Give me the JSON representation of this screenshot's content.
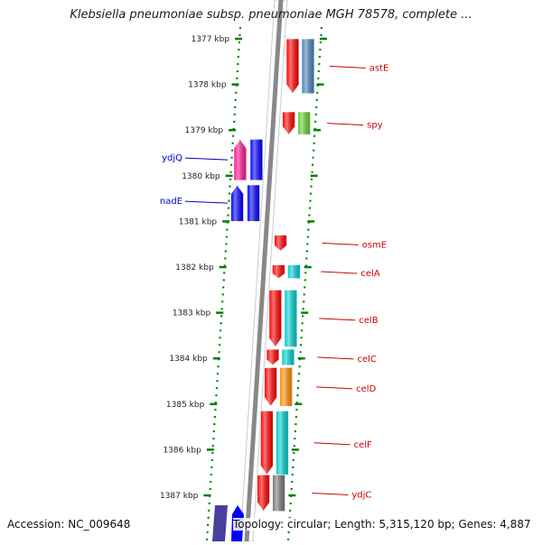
{
  "title": "Klebsiella pneumoniae subsp. pneumoniae MGH 78578, complete ...",
  "footer": {
    "accession": "Accession: NC_009648",
    "stats": "Topology: circular; Length: 5,315,120 bp; Genes: 4,887"
  },
  "colors": {
    "forward_label": "#cc0000",
    "reverse_label": "#0000cc",
    "ruler_ticks": "#008000",
    "backbone": "#888888"
  },
  "ruler": [
    {
      "label": "1377 kbp",
      "kbp": 1377
    },
    {
      "label": "1378 kbp",
      "kbp": 1378
    },
    {
      "label": "1379 kbp",
      "kbp": 1379
    },
    {
      "label": "1380 kbp",
      "kbp": 1380
    },
    {
      "label": "1381 kbp",
      "kbp": 1381
    },
    {
      "label": "1382 kbp",
      "kbp": 1382
    },
    {
      "label": "1383 kbp",
      "kbp": 1383
    },
    {
      "label": "1384 kbp",
      "kbp": 1384
    },
    {
      "label": "1385 kbp",
      "kbp": 1385
    },
    {
      "label": "1386 kbp",
      "kbp": 1386
    },
    {
      "label": "1387 kbp",
      "kbp": 1387
    }
  ],
  "genes": [
    {
      "name": "astE",
      "strand": "forward",
      "start_kbp": 1377.0,
      "end_kbp": 1378.2,
      "color": "#ff0000",
      "feature_color": "#4682b4"
    },
    {
      "name": "spy",
      "strand": "forward",
      "start_kbp": 1378.6,
      "end_kbp": 1379.1,
      "color": "#ff0000",
      "feature_color": "#66cc33"
    },
    {
      "name": "ydjQ",
      "strand": "reverse",
      "start_kbp": 1379.2,
      "end_kbp": 1380.1,
      "color": "#ff1493",
      "feature_color": "#0000ff"
    },
    {
      "name": "nadE",
      "strand": "reverse",
      "start_kbp": 1380.2,
      "end_kbp": 1381.0,
      "color": "#0000ff",
      "feature_color": "#0000ff"
    },
    {
      "name": "osmE",
      "strand": "forward",
      "start_kbp": 1381.3,
      "end_kbp": 1381.65,
      "color": "#ff0000",
      "feature_color": ""
    },
    {
      "name": "celA",
      "strand": "forward",
      "start_kbp": 1381.95,
      "end_kbp": 1382.25,
      "color": "#ff0000",
      "feature_color": "#00cccc"
    },
    {
      "name": "celB",
      "strand": "forward",
      "start_kbp": 1382.5,
      "end_kbp": 1383.75,
      "color": "#ff0000",
      "feature_color": "#00cccc"
    },
    {
      "name": "celC",
      "strand": "forward",
      "start_kbp": 1383.8,
      "end_kbp": 1384.15,
      "color": "#ff0000",
      "feature_color": "#00cccc"
    },
    {
      "name": "celD",
      "strand": "forward",
      "start_kbp": 1384.2,
      "end_kbp": 1385.05,
      "color": "#ff0000",
      "feature_color": "#ff8c00"
    },
    {
      "name": "celF",
      "strand": "forward",
      "start_kbp": 1385.15,
      "end_kbp": 1386.55,
      "color": "#ff0000",
      "feature_color": "#00cccc"
    },
    {
      "name": "ydjC",
      "strand": "forward",
      "start_kbp": 1386.55,
      "end_kbp": 1387.35,
      "color": "#ff0000",
      "feature_color": "#777777"
    }
  ]
}
